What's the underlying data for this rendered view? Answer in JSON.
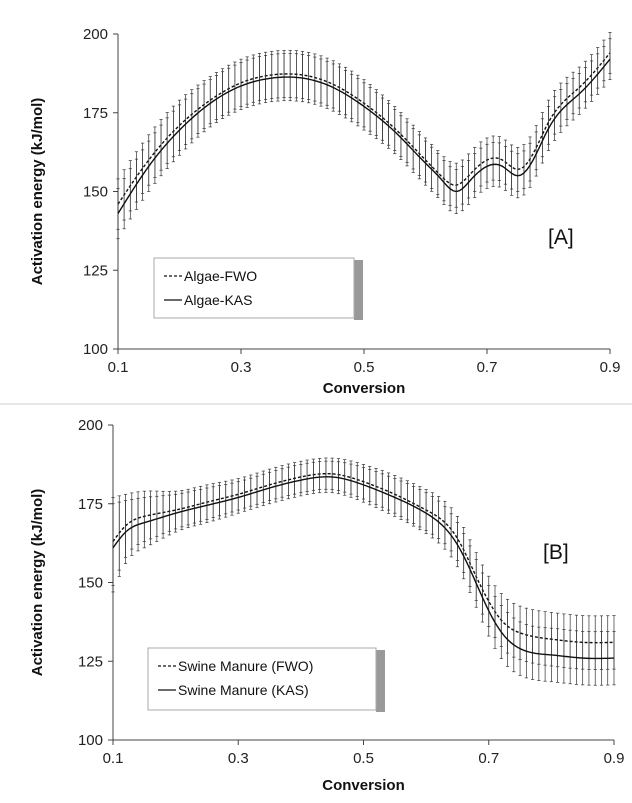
{
  "chart_data": [
    {
      "type": "line",
      "panel_label": "[A]",
      "xlabel": "Conversion",
      "ylabel": "Activation energy  (kJ/mol)",
      "xlim": [
        0.1,
        0.9
      ],
      "ylim": [
        100,
        200
      ],
      "x_ticks": [
        "0.1",
        "0.3",
        "0.5",
        "0.7",
        "0.9"
      ],
      "y_ticks": [
        "100",
        "125",
        "150",
        "175",
        "200"
      ],
      "legend_position": "bottom-left",
      "error_bars": true,
      "x": [
        0.1,
        0.15,
        0.2,
        0.25,
        0.3,
        0.35,
        0.4,
        0.45,
        0.5,
        0.55,
        0.6,
        0.625,
        0.65,
        0.675,
        0.7,
        0.725,
        0.75,
        0.775,
        0.8,
        0.85,
        0.9
      ],
      "series": [
        {
          "name": "Algae-FWO",
          "style": "dashed",
          "values": [
            146,
            160,
            171,
            179,
            184.5,
            187,
            187,
            184,
            178,
            170,
            160,
            155,
            152,
            156,
            160,
            160,
            157,
            162,
            172,
            183,
            194
          ],
          "error": [
            8,
            8,
            8,
            7.5,
            7.5,
            7.5,
            7.5,
            7.5,
            7.5,
            7,
            7,
            7,
            7,
            7,
            7,
            7,
            7,
            7,
            7,
            6.5,
            6.5
          ]
        },
        {
          "name": "Algae-KAS",
          "style": "solid",
          "values": [
            143,
            158,
            169.5,
            178,
            183.5,
            186,
            186,
            183,
            177,
            169,
            159,
            154,
            150,
            154,
            158,
            158,
            155,
            160,
            170,
            181,
            192
          ],
          "error": [
            8,
            8,
            8,
            7.5,
            7.5,
            7.5,
            7.5,
            7.5,
            7.5,
            7,
            7,
            7,
            7,
            7,
            7,
            7,
            7,
            7,
            7,
            6.5,
            6.5
          ]
        }
      ]
    },
    {
      "type": "line",
      "panel_label": "[B]",
      "xlabel": "Conversion",
      "ylabel": "Activation energy (kJ/mol)",
      "xlim": [
        0.1,
        0.9
      ],
      "ylim": [
        100,
        200
      ],
      "x_ticks": [
        "0.1",
        "0.3",
        "0.5",
        "0.7",
        "0.9"
      ],
      "y_ticks": [
        "100",
        "125",
        "150",
        "175",
        "200"
      ],
      "legend_position": "bottom-left",
      "error_bars": true,
      "x": [
        0.1,
        0.12,
        0.15,
        0.2,
        0.25,
        0.3,
        0.35,
        0.4,
        0.45,
        0.5,
        0.55,
        0.6,
        0.65,
        0.675,
        0.7,
        0.725,
        0.75,
        0.8,
        0.85,
        0.9
      ],
      "series": [
        {
          "name": "Swine Manure (FWO)",
          "style": "dashed",
          "values": [
            163,
            168,
            171,
            173,
            175.5,
            178,
            181,
            183.5,
            184.5,
            182,
            178,
            173,
            164,
            154,
            144,
            137,
            134,
            132,
            131,
            131
          ],
          "error": [
            14,
            10,
            8,
            6,
            5.5,
            5,
            5,
            5,
            5,
            5.5,
            6,
            6.5,
            7,
            7.5,
            8,
            8.5,
            8.5,
            8.5,
            8.5,
            8.5
          ]
        },
        {
          "name": "Swine Manure (KAS)",
          "style": "solid",
          "values": [
            161,
            166,
            169,
            172,
            174.5,
            177,
            180,
            182.5,
            183.5,
            181,
            177,
            172,
            162,
            152,
            141,
            133,
            129,
            127,
            126,
            126
          ],
          "error": [
            14,
            10,
            8,
            6,
            5.5,
            5,
            5,
            5,
            5,
            5.5,
            6,
            6.5,
            7,
            7.5,
            8,
            8.5,
            8.5,
            8.5,
            8.5,
            8.5
          ]
        }
      ]
    }
  ]
}
